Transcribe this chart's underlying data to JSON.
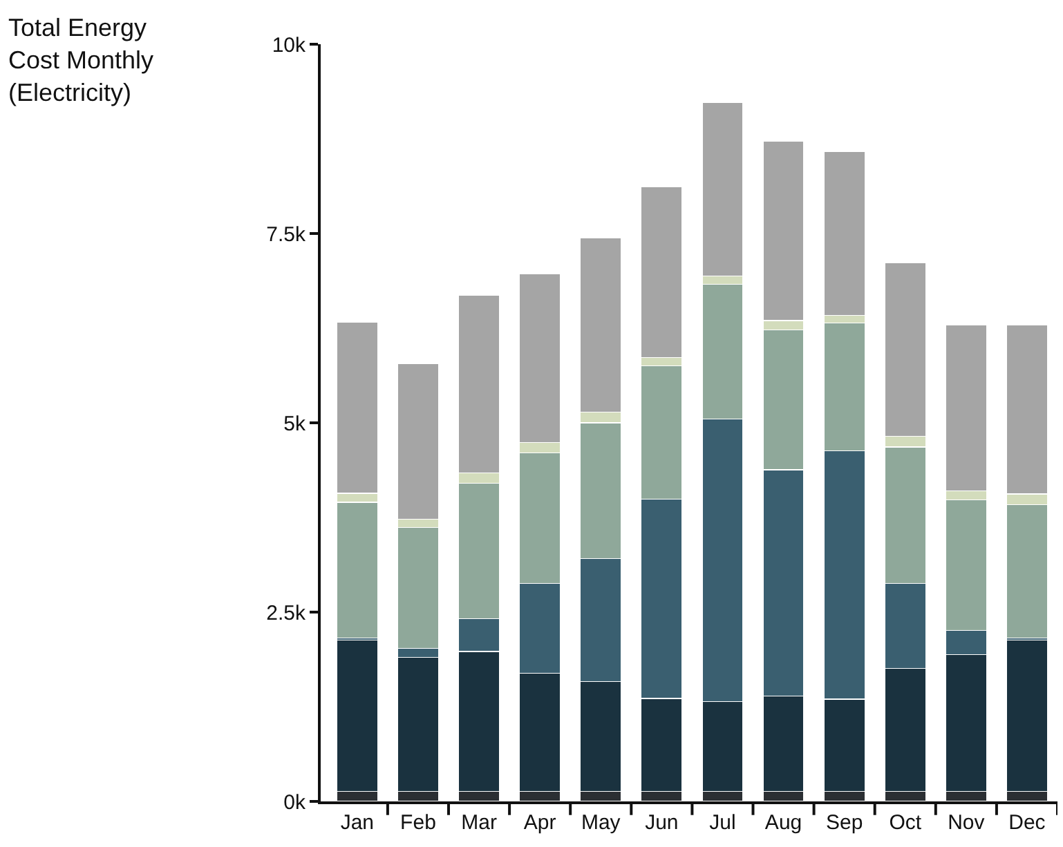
{
  "chart_data": {
    "type": "bar",
    "title": "Total Energy\nCost Monthly\n(Electricity)",
    "stacked": true,
    "categories": [
      "Jan",
      "Feb",
      "Mar",
      "Apr",
      "May",
      "Jun",
      "Jul",
      "Aug",
      "Sep",
      "Oct",
      "Nov",
      "Dec"
    ],
    "series": [
      {
        "color": "#2b2f33",
        "values": [
          0.13,
          0.13,
          0.13,
          0.13,
          0.13,
          0.13,
          0.13,
          0.13,
          0.13,
          0.13,
          0.13,
          0.13
        ]
      },
      {
        "color": "#1a323f",
        "values": [
          2.0,
          1.77,
          1.85,
          1.56,
          1.45,
          1.23,
          1.19,
          1.26,
          1.22,
          1.63,
          1.81,
          2.0
        ]
      },
      {
        "color": "#3a5f70",
        "values": [
          0.03,
          0.12,
          0.43,
          1.19,
          1.63,
          2.63,
          3.73,
          2.99,
          3.28,
          1.12,
          0.32,
          0.03
        ]
      },
      {
        "color": "#8fa89a",
        "values": [
          1.79,
          1.6,
          1.79,
          1.72,
          1.79,
          1.76,
          1.78,
          1.85,
          1.69,
          1.8,
          1.72,
          1.76
        ]
      },
      {
        "color": "#d3dcbc",
        "values": [
          0.12,
          0.11,
          0.14,
          0.14,
          0.14,
          0.11,
          0.11,
          0.12,
          0.1,
          0.14,
          0.12,
          0.14
        ]
      },
      {
        "color": "#a5a5a5",
        "values": [
          2.26,
          2.05,
          2.34,
          2.23,
          2.3,
          2.26,
          2.29,
          2.37,
          2.16,
          2.29,
          2.19,
          2.23
        ]
      }
    ],
    "ylim": [
      0,
      10
    ],
    "yticks": [
      {
        "value": 0,
        "label": "0k"
      },
      {
        "value": 2.5,
        "label": "2.5k"
      },
      {
        "value": 5,
        "label": "5k"
      },
      {
        "value": 7.5,
        "label": "7.5k"
      },
      {
        "value": 10,
        "label": "10k"
      }
    ]
  }
}
